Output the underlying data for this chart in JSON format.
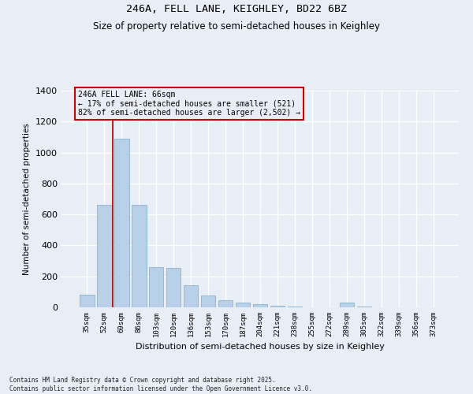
{
  "title1": "246A, FELL LANE, KEIGHLEY, BD22 6BZ",
  "title2": "Size of property relative to semi-detached houses in Keighley",
  "xlabel": "Distribution of semi-detached houses by size in Keighley",
  "ylabel": "Number of semi-detached properties",
  "categories": [
    "35sqm",
    "52sqm",
    "69sqm",
    "86sqm",
    "103sqm",
    "120sqm",
    "136sqm",
    "153sqm",
    "170sqm",
    "187sqm",
    "204sqm",
    "221sqm",
    "238sqm",
    "255sqm",
    "272sqm",
    "289sqm",
    "305sqm",
    "322sqm",
    "339sqm",
    "356sqm",
    "373sqm"
  ],
  "values": [
    80,
    660,
    1090,
    660,
    260,
    255,
    145,
    75,
    45,
    30,
    20,
    10,
    5,
    0,
    0,
    30,
    5,
    0,
    0,
    0,
    0
  ],
  "bar_color": "#b8d0e8",
  "bar_edge_color": "#7aaac8",
  "vline_x": 1.5,
  "vline_color": "#cc0000",
  "annotation_text": "246A FELL LANE: 66sqm\n← 17% of semi-detached houses are smaller (521)\n82% of semi-detached houses are larger (2,502) →",
  "annotation_box_edgecolor": "#cc0000",
  "ylim_max": 1400,
  "yticks": [
    0,
    200,
    400,
    600,
    800,
    1000,
    1200,
    1400
  ],
  "background_color": "#e8eef5",
  "grid_color": "#ffffff",
  "footnote": "Contains HM Land Registry data © Crown copyright and database right 2025.\nContains public sector information licensed under the Open Government Licence v3.0.",
  "fig_width": 6.0,
  "fig_height": 5.0,
  "dpi": 100
}
